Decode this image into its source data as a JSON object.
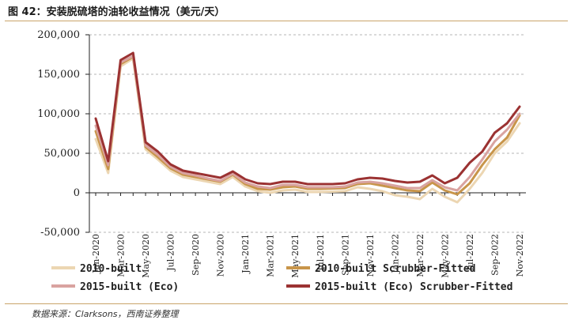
{
  "header": {
    "title": "图 42：安装脱硫塔的油轮收益情况（美元/天）"
  },
  "footer": {
    "source": "数据来源：Clarksons，西南证券整理"
  },
  "chart_data": {
    "type": "line",
    "title": "图 42：安装脱硫塔的油轮收益情况（美元/天）",
    "ylim": [
      -50000,
      200000
    ],
    "yticks": [
      -50000,
      0,
      50000,
      100000,
      150000,
      200000
    ],
    "ytick_labels": [
      "-50,000",
      "0",
      "50,000",
      "100,000",
      "150,000",
      "200,000"
    ],
    "xtick_labels": [
      "Jan-2020",
      "Mar-2020",
      "May-2020",
      "Jul-2020",
      "Sep-2020",
      "Nov-2020",
      "Jan-2021",
      "Mar-2021",
      "May-2021",
      "Jul-2021",
      "Sep-2021",
      "Nov-2021",
      "Jan-2022",
      "Mar-2022",
      "May-2022",
      "Jul-2022",
      "Sep-2022",
      "Nov-2022"
    ],
    "grid": "horizontal dashed",
    "legend_position": "bottom",
    "x": [
      "Jan-2020",
      "Feb-2020",
      "Mar-2020",
      "Apr-2020",
      "May-2020",
      "Jun-2020",
      "Jul-2020",
      "Aug-2020",
      "Sep-2020",
      "Oct-2020",
      "Nov-2020",
      "Dec-2020",
      "Jan-2021",
      "Feb-2021",
      "Mar-2021",
      "Apr-2021",
      "May-2021",
      "Jun-2021",
      "Jul-2021",
      "Aug-2021",
      "Sep-2021",
      "Oct-2021",
      "Nov-2021",
      "Dec-2021",
      "Jan-2022",
      "Feb-2022",
      "Mar-2022",
      "Apr-2022",
      "May-2022",
      "Jun-2022",
      "Jul-2022",
      "Aug-2022",
      "Sep-2022",
      "Oct-2022",
      "Nov-2022"
    ],
    "series": [
      {
        "name": "2010-built",
        "color": "#ecd6b2",
        "values": [
          68000,
          25000,
          160000,
          170000,
          55000,
          42000,
          28000,
          20000,
          17000,
          14000,
          11000,
          20000,
          8000,
          2000,
          0,
          3000,
          4000,
          1000,
          1000,
          1500,
          2000,
          7000,
          5000,
          2000,
          -3000,
          -5000,
          -8000,
          5000,
          -5000,
          -12000,
          5000,
          25000,
          50000,
          65000,
          88000
        ]
      },
      {
        "name": "2010-built Scrubber-Fitted",
        "color": "#c8954a",
        "values": [
          78000,
          30000,
          163000,
          172000,
          58000,
          45000,
          31000,
          23000,
          20000,
          17000,
          14000,
          23000,
          11000,
          5000,
          4000,
          7000,
          8000,
          5000,
          5000,
          5500,
          6000,
          11000,
          12000,
          9000,
          6000,
          3000,
          2000,
          13000,
          3000,
          -2000,
          12000,
          35000,
          55000,
          70000,
          98000
        ]
      },
      {
        "name": "2015-built (Eco)",
        "color": "#d9a3a0",
        "values": [
          85000,
          35000,
          165000,
          173000,
          60000,
          48000,
          33000,
          25000,
          22000,
          18000,
          15000,
          24000,
          13000,
          8000,
          6000,
          10000,
          10000,
          7000,
          7000,
          7000,
          8000,
          13000,
          14000,
          12000,
          9000,
          6000,
          6000,
          16000,
          7000,
          3000,
          20000,
          42000,
          65000,
          80000,
          100000
        ]
      },
      {
        "name": "2015-built (Eco) Scrubber-Fitted",
        "color": "#9b3232",
        "values": [
          94000,
          40000,
          168000,
          177000,
          64000,
          52000,
          36000,
          28000,
          25000,
          22000,
          19000,
          27000,
          17000,
          12000,
          11000,
          14000,
          14000,
          11000,
          11000,
          11000,
          12000,
          17000,
          19000,
          18000,
          15000,
          13000,
          14000,
          22000,
          12000,
          19000,
          38000,
          52000,
          76000,
          88000,
          109000
        ]
      }
    ]
  }
}
